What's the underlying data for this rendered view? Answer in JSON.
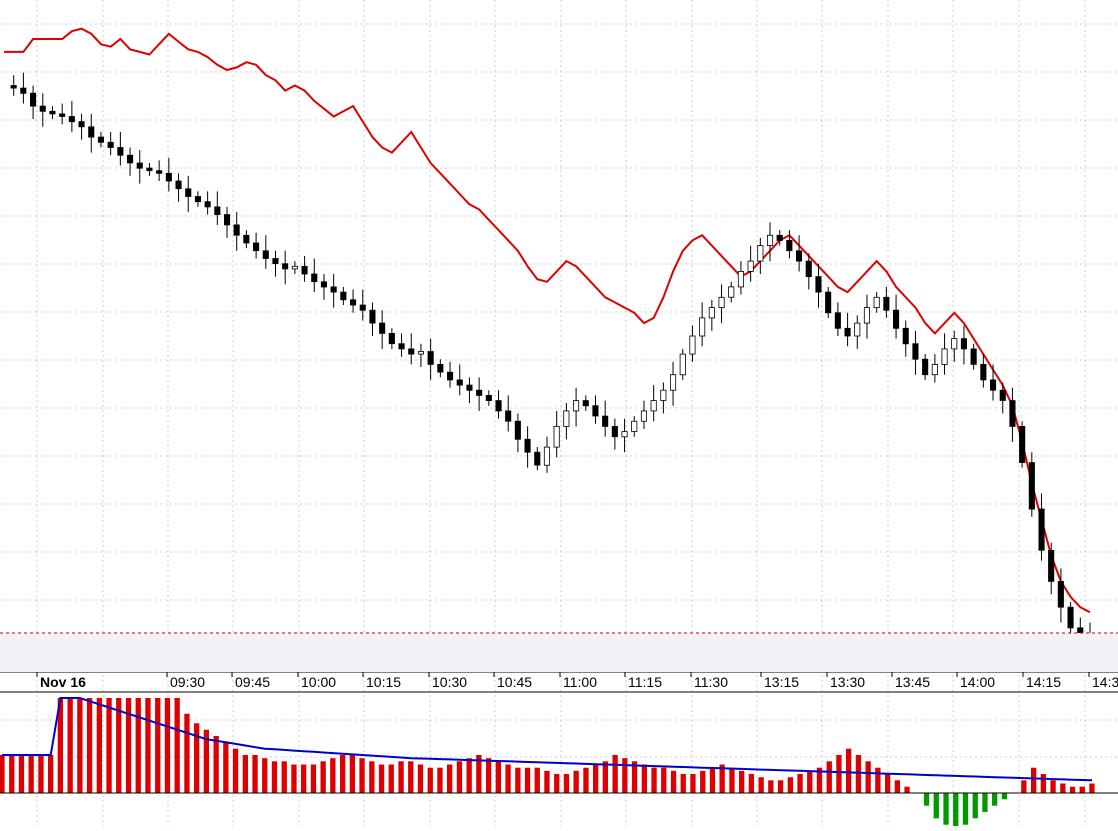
{
  "chart_data": [
    {
      "type": "candlestick",
      "panel": "price",
      "x_tick_labels": [
        "Nov 16",
        "09:30",
        "09:45",
        "10:00",
        "10:15",
        "10:30",
        "10:45",
        "11:00",
        "11:15",
        "11:30",
        "13:15",
        "13:30",
        "13:45",
        "14:00",
        "14:15",
        "14:3"
      ],
      "grid": true,
      "colors": {
        "up_candle": "#ffffff",
        "down_candle": "#000000",
        "overlay_line": "#dd0000",
        "reference_line": "#cc0000",
        "grid": "#cccccc"
      },
      "close_path": [
        42,
        41,
        39,
        34,
        32,
        31,
        30,
        28,
        26,
        22,
        20,
        18,
        15,
        12,
        10,
        9,
        8,
        5,
        2,
        -1,
        -3,
        -5,
        -8,
        -12,
        -16,
        -19,
        -22,
        -25,
        -27,
        -29,
        -28,
        -31,
        -34,
        -36,
        -38,
        -41,
        -43,
        -45,
        -50,
        -54,
        -58,
        -60,
        -62,
        -61,
        -66,
        -69,
        -72,
        -74,
        -76,
        -78,
        -80,
        -84,
        -88,
        -95,
        -100,
        -105,
        -98,
        -90,
        -84,
        -80,
        -82,
        -86,
        -90,
        -94,
        -92,
        -88,
        -84,
        -80,
        -76,
        -70,
        -62,
        -55,
        -48,
        -44,
        -40,
        -36,
        -30,
        -26,
        -20,
        -16,
        -18,
        -22,
        -26,
        -32,
        -38,
        -46,
        -52,
        -55,
        -50,
        -44,
        -40,
        -45,
        -52,
        -58,
        -64,
        -70,
        -66,
        -60,
        -56,
        -60,
        -66,
        -72,
        -76,
        -80,
        -90,
        -104,
        -122,
        -138,
        -150,
        -160,
        -168,
        -172,
        -176
      ],
      "overlay_line": [
        55,
        55,
        55,
        60,
        60,
        60,
        60,
        63,
        64,
        62,
        58,
        57,
        60,
        56,
        55,
        54,
        58,
        62,
        59,
        56,
        55,
        53,
        50,
        48,
        49,
        51,
        50,
        46,
        44,
        40,
        42,
        40,
        36,
        33,
        30,
        32,
        34,
        28,
        22,
        18,
        16,
        20,
        24,
        18,
        12,
        8,
        4,
        0,
        -4,
        -6,
        -10,
        -14,
        -18,
        -22,
        -28,
        -33,
        -34,
        -30,
        -26,
        -28,
        -32,
        -36,
        -40,
        -42,
        -44,
        -46,
        -50,
        -48,
        -40,
        -30,
        -22,
        -18,
        -16,
        -20,
        -24,
        -28,
        -32,
        -30,
        -26,
        -22,
        -18,
        -16,
        -20,
        -24,
        -28,
        -32,
        -36,
        -38,
        -34,
        -30,
        -26,
        -30,
        -36,
        -40,
        -44,
        -50,
        -54,
        -50,
        -46,
        -50,
        -56,
        -62,
        -68,
        -74,
        -82,
        -96,
        -112,
        -126,
        -140,
        -150,
        -156,
        -160,
        -162
      ],
      "reference_line_level": -170
    },
    {
      "type": "bar",
      "panel": "volume",
      "colors": {
        "bar_positive": "#dd0000",
        "bar_negative": "#009900",
        "moving_average": "#0000cc"
      },
      "values": [
        12,
        12,
        12,
        12,
        12,
        12,
        30,
        30,
        30,
        30,
        30,
        30,
        30,
        30,
        30,
        30,
        30,
        30,
        30,
        25,
        22,
        20,
        18,
        16,
        14,
        12,
        12,
        11,
        10,
        10,
        9,
        9,
        9,
        10,
        11,
        12,
        12,
        11,
        10,
        9,
        9,
        10,
        10,
        9,
        8,
        8,
        9,
        10,
        11,
        12,
        11,
        10,
        9,
        8,
        8,
        8,
        7,
        6,
        6,
        7,
        8,
        9,
        10,
        12,
        11,
        10,
        9,
        8,
        8,
        7,
        6,
        6,
        7,
        8,
        9,
        8,
        7,
        6,
        5,
        4,
        4,
        5,
        6,
        7,
        8,
        10,
        12,
        14,
        12,
        10,
        8,
        6,
        4,
        2,
        0,
        -4,
        -8,
        -10,
        -12,
        -10,
        -8,
        -6,
        -4,
        -2,
        0,
        4,
        8,
        6,
        4,
        3,
        2,
        2,
        3
      ],
      "moving_average": [
        12,
        12,
        12,
        12,
        12,
        12,
        30,
        30,
        30,
        29,
        28,
        27,
        26,
        25,
        24,
        23,
        22,
        21,
        20,
        19,
        18,
        17,
        16.5,
        16,
        15.5,
        15,
        14.5,
        14,
        13.8,
        13.6,
        13.4,
        13.2,
        13,
        12.8,
        12.6,
        12.4,
        12.2,
        12,
        11.8,
        11.6,
        11.4,
        11.2,
        11,
        10.9,
        10.8,
        10.7,
        10.6,
        10.5,
        10.4,
        10.3,
        10.2,
        10.1,
        10,
        9.9,
        9.8,
        9.7,
        9.6,
        9.5,
        9.4,
        9.3,
        9.2,
        9.1,
        9,
        8.9,
        8.8,
        8.7,
        8.6,
        8.5,
        8.4,
        8.3,
        8.2,
        8.1,
        8,
        7.9,
        7.8,
        7.7,
        7.6,
        7.5,
        7.4,
        7.3,
        7.2,
        7.1,
        7,
        6.9,
        6.8,
        6.7,
        6.6,
        6.5,
        6.4,
        6.3,
        6.2,
        6.1,
        6,
        5.9,
        5.8,
        5.7,
        5.6,
        5.5,
        5.4,
        5.3,
        5.2,
        5.1,
        5,
        4.9,
        4.8,
        4.7,
        4.6,
        4.5,
        4.4,
        4.3,
        4.2,
        4.1,
        4
      ]
    }
  ]
}
